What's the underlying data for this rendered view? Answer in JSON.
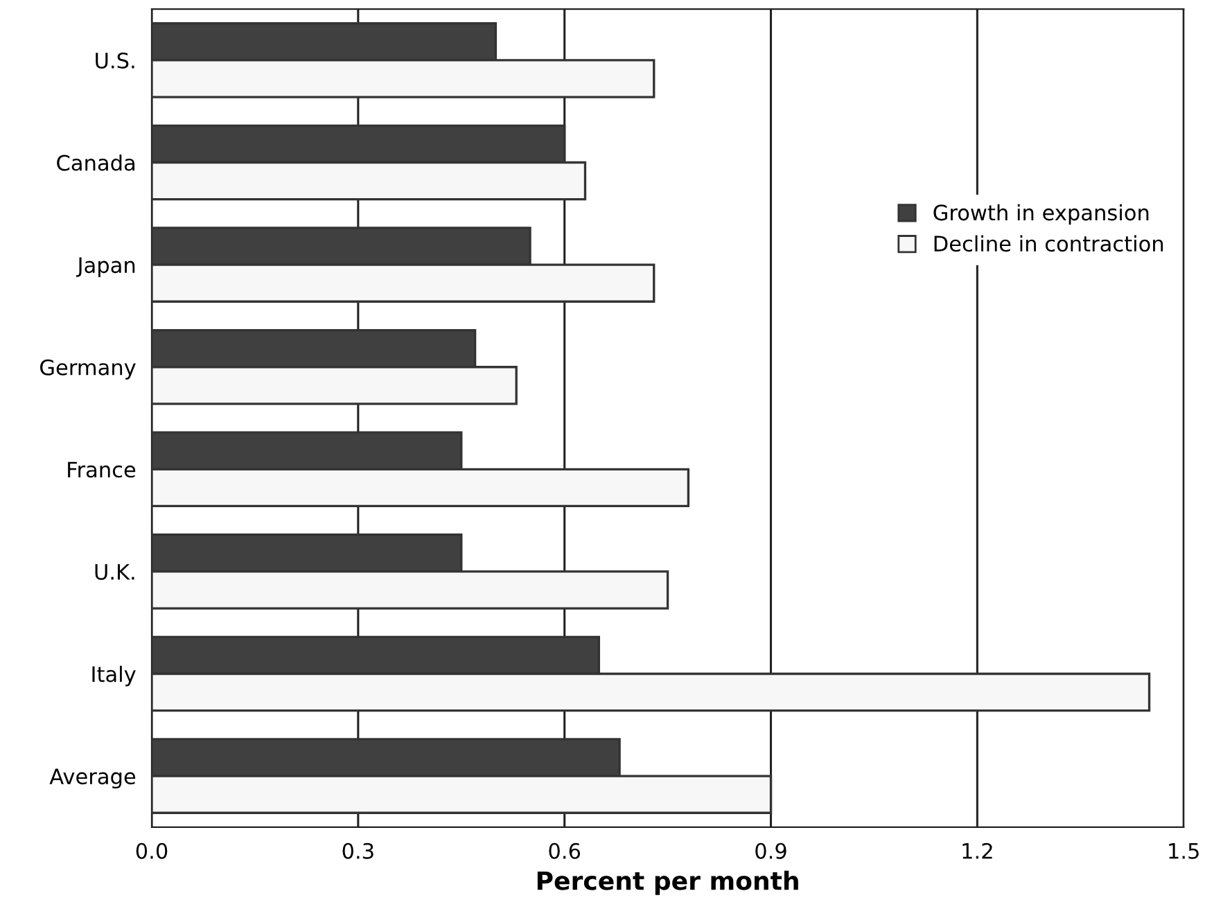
{
  "chart_data": {
    "type": "bar",
    "orientation": "horizontal",
    "xlabel": "Percent per month",
    "categories": [
      "U.S.",
      "Canada",
      "Japan",
      "Germany",
      "France",
      "U.K.",
      "Italy",
      "Average"
    ],
    "series": [
      {
        "name": "Growth in expansion",
        "color": "#404040",
        "values": [
          0.5,
          0.6,
          0.55,
          0.47,
          0.45,
          0.45,
          0.65,
          0.68
        ]
      },
      {
        "name": "Decline in contraction",
        "color": "#f7f7f7",
        "values": [
          0.73,
          0.63,
          0.73,
          0.53,
          0.78,
          0.75,
          1.45,
          0.9
        ]
      }
    ],
    "xlim": [
      0,
      1.5
    ],
    "xticks": [
      {
        "value": 0,
        "label": "0.0"
      },
      {
        "value": 0.3,
        "label": "0.3"
      },
      {
        "value": 0.6,
        "label": "0.6"
      },
      {
        "value": 0.9,
        "label": "0.9"
      },
      {
        "value": 1.2,
        "label": "1.2"
      },
      {
        "value": 1.5,
        "label": "1.5"
      }
    ],
    "grid": "x",
    "legend": "center right"
  }
}
